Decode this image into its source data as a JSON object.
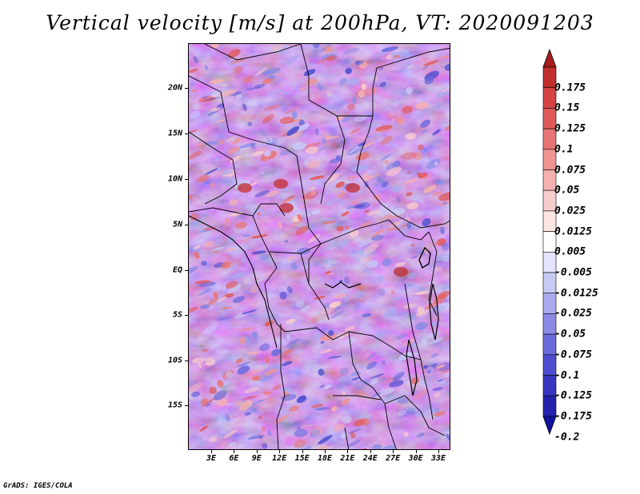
{
  "title": "Vertical velocity [m/s] at 200hPa, VT: 2020091203",
  "footer": "GrADS: IGES/COLA",
  "map": {
    "region": "Central Africa",
    "variable": "Vertical velocity",
    "units": "m/s",
    "level": "200hPa",
    "valid_time": "2020091203",
    "lat_labels": [
      "20N",
      "15N",
      "10N",
      "5N",
      "EQ",
      "5S",
      "10S",
      "15S"
    ],
    "lon_labels": [
      "3E",
      "6E",
      "9E",
      "12E",
      "15E",
      "18E",
      "21E",
      "24E",
      "27E",
      "30E",
      "33E"
    ]
  },
  "colorbar": {
    "labels": [
      "0.175",
      "0.15",
      "0.125",
      "0.1",
      "0.075",
      "0.05",
      "0.025",
      "0.0125",
      "0.005",
      "-0.005",
      "-0.0125",
      "-0.025",
      "-0.05",
      "-0.075",
      "-0.1",
      "-0.125",
      "-0.175",
      "-0.2"
    ],
    "colors": [
      "#a61c1c",
      "#c12e2e",
      "#d54343",
      "#e05a5a",
      "#e87575",
      "#f09393",
      "#f5b0b0",
      "#f9cccc",
      "#fde6e6",
      "#ffffff",
      "#e4e4fb",
      "#c9c9f5",
      "#aaaaef",
      "#8b8be6",
      "#6b6bdc",
      "#4e4ed0",
      "#3636c1",
      "#2222ae",
      "#1212a0"
    ]
  }
}
